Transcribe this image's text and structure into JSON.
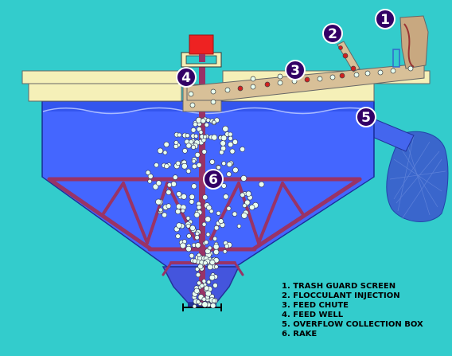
{
  "markers": [
    {
      "number": "1",
      "label": "TRASH GUARD SCREEN"
    },
    {
      "number": "2",
      "label": "FLOCCULANT INJECTION"
    },
    {
      "number": "3",
      "label": "FEED CHUTE"
    },
    {
      "number": "4",
      "label": "FEED WELL"
    },
    {
      "number": "5",
      "label": "OVERFLOW COLLECTION BOX"
    },
    {
      "number": "6",
      "label": "RAKE"
    }
  ],
  "legend": [
    "1. TRASH GUARD SCREEN",
    "2. FLOCCULANT INJECTION",
    "3. FEED CHUTE",
    "4. FEED WELL",
    "5. OVERFLOW COLLECTION BOX",
    "6. RAKE"
  ],
  "colors": {
    "background": "#33cccc",
    "tank_fill": "#3355ee",
    "tank_water": "#4466ff",
    "walkway": "#f5f0b8",
    "rake_structure": "#993366",
    "feed_slurry": "#d8c098",
    "flocculant_dot": "#d02020",
    "solid_particle": "#e8fff0",
    "drive_motor": "#ee2222",
    "marker_fill": "#330066"
  }
}
